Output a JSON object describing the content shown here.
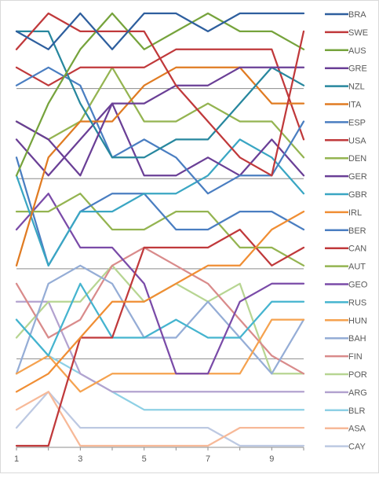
{
  "chart_data": {
    "type": "line",
    "x": [
      1,
      2,
      3,
      4,
      5,
      6,
      7,
      8,
      9,
      10
    ],
    "x_tick_labels": [
      "1",
      "3",
      "5",
      "7",
      "9"
    ],
    "x_tick_values": [
      1,
      3,
      5,
      7,
      9
    ],
    "y_reversed": true,
    "ylim": [
      1,
      25
    ],
    "gridlines_at_rank": [
      5,
      10,
      15,
      20
    ],
    "grid": true,
    "legend_position": "right",
    "title": "",
    "xlabel": "",
    "ylabel": "",
    "series": [
      {
        "name": "BRA",
        "color": "#2E5F9E",
        "values": [
          2,
          3,
          1,
          3,
          1,
          1,
          2,
          1,
          1,
          1
        ]
      },
      {
        "name": "SWE",
        "color": "#C0393B",
        "values": [
          3,
          1,
          2,
          2,
          2,
          5,
          7,
          9,
          10,
          2
        ]
      },
      {
        "name": "AUS",
        "color": "#76A33C",
        "values": [
          10,
          6,
          3,
          1,
          3,
          2,
          1,
          2,
          2,
          3
        ]
      },
      {
        "name": "GRE",
        "color": "#6A3F96",
        "values": [
          7,
          8,
          10,
          6,
          6,
          5,
          5,
          4,
          4,
          4
        ]
      },
      {
        "name": "NZL",
        "color": "#27879E",
        "values": [
          2,
          2,
          6,
          9,
          9,
          8,
          8,
          6,
          4,
          5
        ]
      },
      {
        "name": "ITA",
        "color": "#E07B22",
        "values": [
          15,
          9,
          7,
          7,
          5,
          4,
          4,
          4,
          6,
          6
        ]
      },
      {
        "name": "ESP",
        "color": "#4A7EC1",
        "values": [
          5,
          4,
          5,
          9,
          8,
          9,
          11,
          10,
          10,
          7
        ]
      },
      {
        "name": "USA",
        "color": "#C0393B",
        "values": [
          4,
          5,
          4,
          4,
          4,
          3,
          3,
          3,
          3,
          8
        ]
      },
      {
        "name": "DEN",
        "color": "#94B451",
        "values": [
          7,
          8,
          7,
          4,
          7,
          7,
          6,
          7,
          7,
          9
        ]
      },
      {
        "name": "GER",
        "color": "#6A3F96",
        "values": [
          8,
          10,
          8,
          6,
          10,
          10,
          9,
          10,
          8,
          10
        ]
      },
      {
        "name": "GBR",
        "color": "#3AA6C3",
        "values": [
          10,
          15,
          12,
          12,
          11,
          11,
          10,
          8,
          9,
          11
        ]
      },
      {
        "name": "IRL",
        "color": "#F08E34",
        "values": [
          22,
          21,
          19,
          17,
          17,
          16,
          15,
          15,
          13,
          12
        ]
      },
      {
        "name": "BER",
        "color": "#4A7EC1",
        "values": [
          9,
          15,
          12,
          11,
          11,
          13,
          13,
          12,
          12,
          13
        ]
      },
      {
        "name": "CAN",
        "color": "#C0393B",
        "values": [
          25,
          25,
          19,
          19,
          14,
          14,
          14,
          13,
          15,
          14
        ]
      },
      {
        "name": "AUT",
        "color": "#94B451",
        "values": [
          12,
          12,
          11,
          13,
          13,
          12,
          12,
          14,
          14,
          15
        ]
      },
      {
        "name": "GEO",
        "color": "#7A4BA8",
        "values": [
          13,
          11,
          14,
          14,
          16,
          21,
          21,
          17,
          16,
          16
        ]
      },
      {
        "name": "RUS",
        "color": "#45B4CF",
        "values": [
          18,
          20,
          16,
          19,
          19,
          18,
          19,
          19,
          17,
          17
        ]
      },
      {
        "name": "HUN",
        "color": "#F5A24F",
        "values": [
          21,
          20,
          22,
          21,
          21,
          21,
          21,
          21,
          18,
          18
        ]
      },
      {
        "name": "BAH",
        "color": "#95ADD6",
        "values": [
          21,
          16,
          15,
          16,
          19,
          19,
          17,
          19,
          21,
          18
        ]
      },
      {
        "name": "FIN",
        "color": "#D98B8B",
        "values": [
          16,
          19,
          18,
          15,
          14,
          15,
          16,
          18,
          20,
          21
        ]
      },
      {
        "name": "POR",
        "color": "#B7D592",
        "values": [
          19,
          17,
          17,
          15,
          17,
          16,
          17,
          16,
          21,
          21
        ]
      },
      {
        "name": "ARG",
        "color": "#B3A2CF",
        "values": [
          17,
          17,
          21,
          22,
          22,
          22,
          22,
          22,
          22,
          22
        ]
      },
      {
        "name": "BLR",
        "color": "#8ED0E5",
        "values": [
          18,
          20,
          21,
          22,
          23,
          23,
          23,
          23,
          23,
          23
        ]
      },
      {
        "name": "ASA",
        "color": "#F7B998",
        "values": [
          23,
          22,
          25,
          25,
          25,
          25,
          25,
          24,
          24,
          24
        ]
      },
      {
        "name": "CAY",
        "color": "#BDC9E2",
        "values": [
          24,
          22,
          24,
          24,
          24,
          24,
          24,
          25,
          25,
          25
        ]
      }
    ]
  }
}
